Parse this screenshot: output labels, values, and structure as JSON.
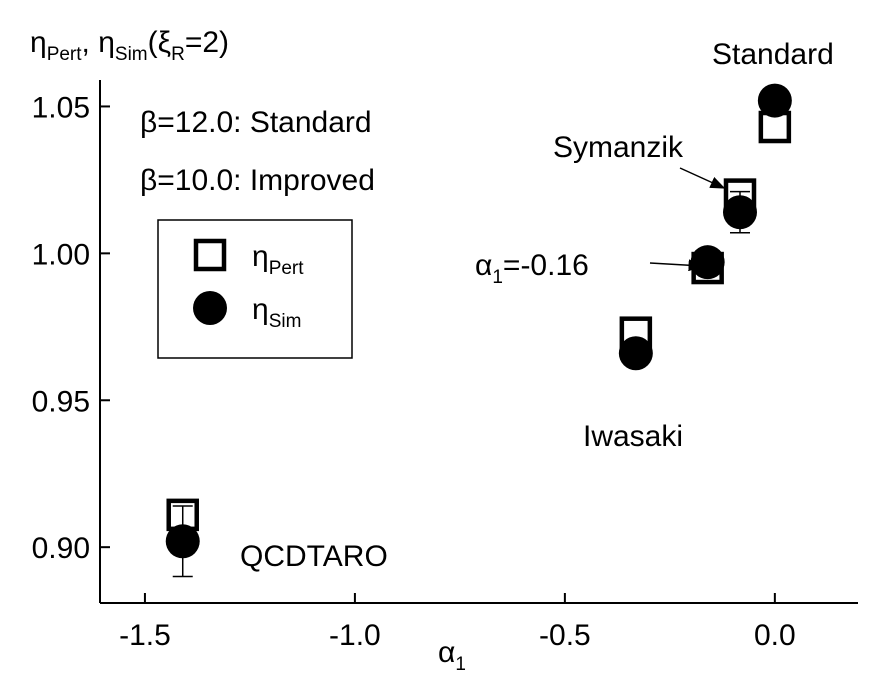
{
  "chart_data": {
    "type": "scatter",
    "ylabel": [
      {
        "text": "η",
        "sub": false
      },
      {
        "text": "Pert",
        "sub": true
      },
      {
        "text": ", η",
        "sub": false
      },
      {
        "text": "Sim",
        "sub": true
      },
      {
        "text": "(ξ",
        "sub": false
      },
      {
        "text": "R",
        "sub": true
      },
      {
        "text": "=2)",
        "sub": false
      }
    ],
    "xlabel": [
      {
        "text": "α",
        "sub": false
      },
      {
        "text": "1",
        "sub": true
      }
    ],
    "xlim": [
      -1.607,
      0.198
    ],
    "ylim": [
      0.881,
      1.059
    ],
    "xticks": [
      {
        "value": -1.5,
        "label": "-1.5"
      },
      {
        "value": -1.0,
        "label": "-1.0"
      },
      {
        "value": -0.5,
        "label": "-0.5"
      },
      {
        "value": 0.0,
        "label": "0.0"
      }
    ],
    "yticks": [
      {
        "value": 0.9,
        "label": "0.90"
      },
      {
        "value": 0.95,
        "label": "0.95"
      },
      {
        "value": 1.0,
        "label": "1.00"
      },
      {
        "value": 1.05,
        "label": "1.05"
      }
    ],
    "series": [
      {
        "name": [
          {
            "text": "η",
            "sub": false
          },
          {
            "text": "Pert",
            "sub": true
          }
        ],
        "marker": "square",
        "color": "#000000",
        "x": [
          -1.41,
          -0.331,
          -0.16,
          -0.083,
          0.0
        ],
        "values": [
          0.911,
          0.973,
          0.995,
          1.02,
          1.043
        ]
      },
      {
        "name": [
          {
            "text": "η",
            "sub": false
          },
          {
            "text": "Sim",
            "sub": true
          }
        ],
        "marker": "circle",
        "color": "#000000",
        "x": [
          -1.41,
          -0.331,
          -0.16,
          -0.083,
          0.0
        ],
        "values": [
          0.902,
          0.966,
          0.997,
          1.014,
          1.052
        ],
        "errors": [
          0.012,
          null,
          null,
          0.007,
          null
        ]
      }
    ],
    "info_lines": [
      "β=12.0: Standard",
      "β=10.0: Improved"
    ],
    "annotations": [
      {
        "parts": [
          {
            "text": "Standard",
            "sub": false
          }
        ]
      },
      {
        "parts": [
          {
            "text": "Symanzik",
            "sub": false
          }
        ]
      },
      {
        "parts": [
          {
            "text": "α",
            "sub": false
          },
          {
            "text": "1",
            "sub": true
          },
          {
            "text": "=-0.16",
            "sub": false
          }
        ]
      },
      {
        "parts": [
          {
            "text": "Iwasaki",
            "sub": false
          }
        ]
      },
      {
        "parts": [
          {
            "text": "QCDTARO",
            "sub": false
          }
        ]
      }
    ]
  }
}
